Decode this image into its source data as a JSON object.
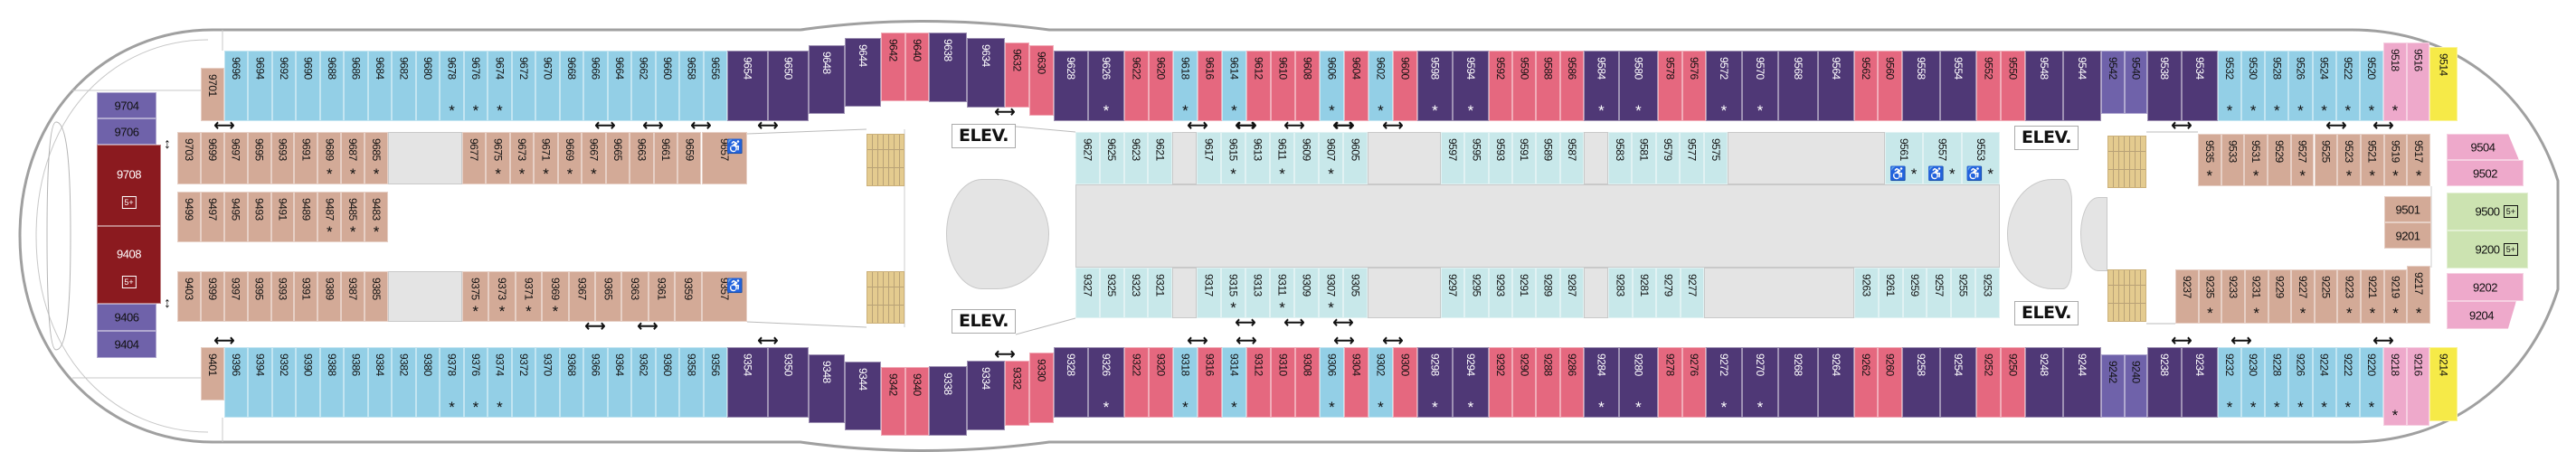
{
  "colors": {
    "b": "#93cfe6",
    "p": "#4f3876",
    "r": "#e5687f",
    "l": "#6f62aa",
    "k": "#eea9cb",
    "y": "#f6ea48",
    "t": "#c8e8ea",
    "n": "#d3aa97",
    "g": "#cce3b1",
    "d": "#8b1a1f",
    "corridor": "#e4e4e4",
    "stair": "#e4cb8f",
    "hull": "#a0a0a0"
  },
  "labels": {
    "elevator": "ELEV.",
    "star": "*",
    "family_badge": "5+",
    "wheelchair": "♿",
    "connect_h": "⟷",
    "connect_v": "↕"
  },
  "top_row": [
    [
      "9696",
      "b",
      0
    ],
    [
      "9694",
      "b",
      0
    ],
    [
      "9692",
      "b",
      0
    ],
    [
      "9690",
      "b",
      0
    ],
    [
      "9688",
      "b",
      0
    ],
    [
      "9686",
      "b",
      0
    ],
    [
      "9684",
      "b",
      0
    ],
    [
      "9682",
      "b",
      0
    ],
    [
      "9680",
      "b",
      0
    ],
    [
      "9678",
      "b",
      1
    ],
    [
      "9676",
      "b",
      1
    ],
    [
      "9674",
      "b",
      1
    ],
    [
      "9672",
      "b",
      0
    ],
    [
      "9670",
      "b",
      0
    ],
    [
      "9668",
      "b",
      0
    ],
    [
      "9666",
      "b",
      0
    ],
    [
      "9664",
      "b",
      0
    ],
    [
      "9662",
      "b",
      0
    ],
    [
      "9660",
      "b",
      0
    ],
    [
      "9658",
      "b",
      0
    ],
    [
      "9656",
      "b",
      0
    ],
    [
      "9654",
      "p",
      0
    ],
    [
      "9650",
      "p",
      0
    ],
    [
      "9648",
      "p",
      0
    ],
    [
      "9644",
      "p",
      0
    ],
    [
      "9642",
      "r",
      0
    ],
    [
      "9640",
      "r",
      0
    ],
    [
      "9638",
      "p",
      0
    ],
    [
      "9634",
      "p",
      0
    ],
    [
      "9632",
      "r",
      0
    ],
    [
      "9630",
      "r",
      0
    ],
    [
      "9628",
      "p",
      0
    ],
    [
      "9626",
      "p",
      1
    ],
    [
      "9622",
      "r",
      0
    ],
    [
      "9620",
      "r",
      0
    ],
    [
      "9618",
      "b",
      1
    ],
    [
      "9616",
      "r",
      0
    ],
    [
      "9614",
      "b",
      1
    ],
    [
      "9612",
      "r",
      0
    ],
    [
      "9610",
      "r",
      0
    ],
    [
      "9608",
      "r",
      0
    ],
    [
      "9606",
      "b",
      1
    ],
    [
      "9604",
      "r",
      0
    ],
    [
      "9602",
      "b",
      1
    ],
    [
      "9600",
      "r",
      0
    ],
    [
      "9598",
      "p",
      1
    ],
    [
      "9594",
      "p",
      1
    ],
    [
      "9592",
      "r",
      0
    ],
    [
      "9590",
      "r",
      0
    ],
    [
      "9588",
      "r",
      0
    ],
    [
      "9586",
      "r",
      0
    ],
    [
      "9584",
      "p",
      1
    ],
    [
      "9580",
      "p",
      1
    ],
    [
      "9578",
      "r",
      0
    ],
    [
      "9576",
      "r",
      0
    ],
    [
      "9572",
      "p",
      1
    ],
    [
      "9570",
      "p",
      1
    ],
    [
      "9568",
      "p",
      0
    ],
    [
      "9564",
      "p",
      0
    ],
    [
      "9562",
      "r",
      0
    ],
    [
      "9560",
      "r",
      0
    ],
    [
      "9558",
      "p",
      0
    ],
    [
      "9554",
      "p",
      0
    ],
    [
      "9552",
      "r",
      0
    ],
    [
      "9550",
      "r",
      0
    ],
    [
      "9548",
      "p",
      0
    ],
    [
      "9544",
      "p",
      0
    ],
    [
      "9542",
      "l",
      0
    ],
    [
      "9540",
      "l",
      0
    ],
    [
      "9538",
      "p",
      0
    ],
    [
      "9534",
      "p",
      0
    ],
    [
      "9532",
      "b",
      1
    ],
    [
      "9530",
      "b",
      1
    ],
    [
      "9528",
      "b",
      1
    ],
    [
      "9526",
      "b",
      1
    ],
    [
      "9524",
      "b",
      1
    ],
    [
      "9522",
      "b",
      1
    ],
    [
      "9520",
      "b",
      1
    ],
    [
      "9518",
      "k",
      1
    ],
    [
      "9516",
      "k",
      0
    ],
    [
      "9514",
      "y",
      0
    ]
  ],
  "bottom_row": [
    [
      "9396",
      "b",
      0
    ],
    [
      "9394",
      "b",
      0
    ],
    [
      "9392",
      "b",
      0
    ],
    [
      "9390",
      "b",
      0
    ],
    [
      "9388",
      "b",
      0
    ],
    [
      "9386",
      "b",
      0
    ],
    [
      "9384",
      "b",
      0
    ],
    [
      "9382",
      "b",
      0
    ],
    [
      "9380",
      "b",
      0
    ],
    [
      "9378",
      "b",
      1
    ],
    [
      "9376",
      "b",
      1
    ],
    [
      "9374",
      "b",
      1
    ],
    [
      "9372",
      "b",
      0
    ],
    [
      "9370",
      "b",
      0
    ],
    [
      "9368",
      "b",
      0
    ],
    [
      "9366",
      "b",
      0
    ],
    [
      "9364",
      "b",
      0
    ],
    [
      "9362",
      "b",
      0
    ],
    [
      "9360",
      "b",
      0
    ],
    [
      "9358",
      "b",
      0
    ],
    [
      "9356",
      "b",
      0
    ],
    [
      "9354",
      "p",
      0
    ],
    [
      "9350",
      "p",
      0
    ],
    [
      "9348",
      "p",
      0
    ],
    [
      "9344",
      "p",
      0
    ],
    [
      "9342",
      "r",
      0
    ],
    [
      "9340",
      "r",
      0
    ],
    [
      "9338",
      "p",
      0
    ],
    [
      "9334",
      "p",
      0
    ],
    [
      "9332",
      "r",
      0
    ],
    [
      "9330",
      "r",
      0
    ],
    [
      "9328",
      "p",
      0
    ],
    [
      "9326",
      "p",
      1
    ],
    [
      "9322",
      "r",
      0
    ],
    [
      "9320",
      "r",
      0
    ],
    [
      "9318",
      "b",
      1
    ],
    [
      "9316",
      "r",
      0
    ],
    [
      "9314",
      "b",
      1
    ],
    [
      "9312",
      "r",
      0
    ],
    [
      "9310",
      "r",
      0
    ],
    [
      "9308",
      "r",
      0
    ],
    [
      "9306",
      "b",
      1
    ],
    [
      "9304",
      "r",
      0
    ],
    [
      "9302",
      "b",
      1
    ],
    [
      "9300",
      "r",
      0
    ],
    [
      "9298",
      "p",
      1
    ],
    [
      "9294",
      "p",
      1
    ],
    [
      "9292",
      "r",
      0
    ],
    [
      "9290",
      "r",
      0
    ],
    [
      "9288",
      "r",
      0
    ],
    [
      "9286",
      "r",
      0
    ],
    [
      "9284",
      "p",
      1
    ],
    [
      "9280",
      "p",
      1
    ],
    [
      "9278",
      "r",
      0
    ],
    [
      "9276",
      "r",
      0
    ],
    [
      "9272",
      "p",
      1
    ],
    [
      "9270",
      "p",
      1
    ],
    [
      "9268",
      "p",
      0
    ],
    [
      "9264",
      "p",
      0
    ],
    [
      "9262",
      "r",
      0
    ],
    [
      "9260",
      "r",
      0
    ],
    [
      "9258",
      "p",
      0
    ],
    [
      "9254",
      "p",
      0
    ],
    [
      "9252",
      "r",
      0
    ],
    [
      "9250",
      "r",
      0
    ],
    [
      "9248",
      "p",
      0
    ],
    [
      "9244",
      "p",
      0
    ],
    [
      "9242",
      "l",
      0
    ],
    [
      "9240",
      "l",
      0
    ],
    [
      "9238",
      "p",
      0
    ],
    [
      "9234",
      "p",
      0
    ],
    [
      "9232",
      "b",
      1
    ],
    [
      "9230",
      "b",
      1
    ],
    [
      "9228",
      "b",
      1
    ],
    [
      "9226",
      "b",
      1
    ],
    [
      "9224",
      "b",
      1
    ],
    [
      "9222",
      "b",
      1
    ],
    [
      "9220",
      "b",
      1
    ],
    [
      "9218",
      "k",
      1
    ],
    [
      "9216",
      "k",
      0
    ],
    [
      "9214",
      "y",
      0
    ]
  ],
  "upper_inner": {
    "left_a": [
      [
        "9703",
        "n",
        0
      ],
      [
        "9699",
        "n",
        0
      ],
      [
        "9697",
        "n",
        0
      ],
      [
        "9695",
        "n",
        0
      ],
      [
        "9693",
        "n",
        0
      ],
      [
        "9691",
        "n",
        0
      ],
      [
        "9689",
        "n",
        1
      ],
      [
        "9687",
        "n",
        1
      ],
      [
        "9685",
        "n",
        1
      ]
    ],
    "left_b": [
      [
        "9677",
        "n",
        0
      ],
      [
        "9675",
        "n",
        1
      ],
      [
        "9673",
        "n",
        1
      ],
      [
        "9671",
        "n",
        1
      ],
      [
        "9669",
        "n",
        1
      ],
      [
        "9667",
        "n",
        1
      ],
      [
        "9665",
        "n",
        0
      ],
      [
        "9663",
        "n",
        0
      ],
      [
        "9661",
        "n",
        0
      ],
      [
        "9659",
        "n",
        0
      ],
      [
        "9657",
        "n",
        0,
        "wheelchair"
      ]
    ],
    "mid_a": [
      [
        "9627",
        "t",
        0
      ],
      [
        "9625",
        "t",
        0
      ],
      [
        "9623",
        "t",
        0
      ],
      [
        "9621",
        "t",
        0
      ]
    ],
    "mid_b": [
      [
        "9617",
        "t",
        0
      ],
      [
        "9615",
        "t",
        1
      ],
      [
        "9613",
        "t",
        0
      ],
      [
        "9611",
        "t",
        1
      ],
      [
        "9609",
        "t",
        0
      ],
      [
        "9607",
        "t",
        1
      ],
      [
        "9605",
        "t",
        0
      ]
    ],
    "mid_c": [
      [
        "9597",
        "t",
        0
      ],
      [
        "9595",
        "t",
        0
      ],
      [
        "9593",
        "t",
        0
      ],
      [
        "9591",
        "t",
        0
      ],
      [
        "9589",
        "t",
        0
      ],
      [
        "9587",
        "t",
        0
      ]
    ],
    "mid_d": [
      [
        "9583",
        "t",
        0
      ],
      [
        "9581",
        "t",
        0
      ],
      [
        "9579",
        "t",
        0
      ],
      [
        "9577",
        "t",
        0
      ],
      [
        "9575",
        "t",
        0
      ]
    ],
    "mid_e": [
      [
        "9561",
        "t",
        1,
        "wheelchair"
      ],
      [
        "9557",
        "t",
        1,
        "wheelchair"
      ],
      [
        "9553",
        "t",
        1,
        "wheelchair"
      ]
    ],
    "right": [
      [
        "9535",
        "n",
        1
      ],
      [
        "9533",
        "n",
        0
      ],
      [
        "9531",
        "n",
        1
      ],
      [
        "9529",
        "n",
        0
      ],
      [
        "9527",
        "n",
        1
      ],
      [
        "9525",
        "n",
        0
      ],
      [
        "9523",
        "n",
        1
      ],
      [
        "9521",
        "n",
        1
      ],
      [
        "9519",
        "n",
        1
      ],
      [
        "9517",
        "n",
        1
      ]
    ]
  },
  "middle_row": [
    [
      "9499",
      "n",
      0
    ],
    [
      "9497",
      "n",
      0
    ],
    [
      "9495",
      "n",
      0
    ],
    [
      "9493",
      "n",
      0
    ],
    [
      "9491",
      "n",
      0
    ],
    [
      "9489",
      "n",
      0
    ],
    [
      "9487",
      "n",
      1
    ],
    [
      "9485",
      "n",
      1
    ],
    [
      "9483",
      "n",
      1
    ]
  ],
  "lower_inner": {
    "left_a": [
      [
        "9403",
        "n",
        0
      ],
      [
        "9399",
        "n",
        0
      ],
      [
        "9397",
        "n",
        0
      ],
      [
        "9395",
        "n",
        0
      ],
      [
        "9393",
        "n",
        0
      ],
      [
        "9391",
        "n",
        0
      ],
      [
        "9389",
        "n",
        0
      ],
      [
        "9387",
        "n",
        0
      ],
      [
        "9385",
        "n",
        0
      ]
    ],
    "left_b": [
      [
        "9375",
        "n",
        1
      ],
      [
        "9373",
        "n",
        1
      ],
      [
        "9371",
        "n",
        1
      ],
      [
        "9369",
        "n",
        1
      ],
      [
        "9367",
        "n",
        0
      ],
      [
        "9365",
        "n",
        0
      ],
      [
        "9363",
        "n",
        0
      ],
      [
        "9361",
        "n",
        0
      ],
      [
        "9359",
        "n",
        0
      ],
      [
        "9357",
        "n",
        0,
        "wheelchair"
      ]
    ],
    "mid_a": [
      [
        "9327",
        "t",
        0
      ],
      [
        "9325",
        "t",
        0
      ],
      [
        "9323",
        "t",
        0
      ],
      [
        "9321",
        "t",
        0
      ]
    ],
    "mid_b": [
      [
        "9317",
        "t",
        0
      ],
      [
        "9315",
        "t",
        1
      ],
      [
        "9313",
        "t",
        0
      ],
      [
        "9311",
        "t",
        1
      ],
      [
        "9309",
        "t",
        0
      ],
      [
        "9307",
        "t",
        1
      ],
      [
        "9305",
        "t",
        0
      ]
    ],
    "mid_c": [
      [
        "9297",
        "t",
        0
      ],
      [
        "9295",
        "t",
        0
      ],
      [
        "9293",
        "t",
        0
      ],
      [
        "9291",
        "t",
        0
      ],
      [
        "9289",
        "t",
        0
      ],
      [
        "9287",
        "t",
        0
      ]
    ],
    "mid_d": [
      [
        "9283",
        "t",
        0
      ],
      [
        "9281",
        "t",
        0
      ],
      [
        "9279",
        "t",
        0
      ],
      [
        "9277",
        "t",
        0
      ]
    ],
    "mid_e": [
      [
        "9263",
        "t",
        0
      ],
      [
        "9261",
        "t",
        0
      ],
      [
        "9259",
        "t",
        0
      ],
      [
        "9257",
        "t",
        0
      ],
      [
        "9255",
        "t",
        0
      ],
      [
        "9253",
        "t",
        0
      ]
    ],
    "right": [
      [
        "9237",
        "n",
        0
      ],
      [
        "9235",
        "n",
        1
      ],
      [
        "9233",
        "n",
        0
      ],
      [
        "9231",
        "n",
        1
      ],
      [
        "9229",
        "n",
        0
      ],
      [
        "9227",
        "n",
        1
      ],
      [
        "9225",
        "n",
        0
      ],
      [
        "9223",
        "n",
        1
      ],
      [
        "9221",
        "n",
        1
      ],
      [
        "9219",
        "n",
        1
      ],
      [
        "9217",
        "n",
        1
      ]
    ]
  },
  "end_cabins": {
    "aft": [
      [
        "9704",
        "l",
        0
      ],
      [
        "9706",
        "l",
        0
      ],
      [
        "9708",
        "d",
        0,
        "",
        "family"
      ],
      [
        "9408",
        "d",
        0,
        "",
        "family"
      ],
      [
        "9406",
        "l",
        0
      ],
      [
        "9404",
        "l",
        0
      ]
    ],
    "aft_corner": [
      [
        "9701",
        "n",
        0
      ],
      [
        "9401",
        "n",
        0
      ]
    ],
    "fwd": [
      [
        "9504",
        "k",
        0
      ],
      [
        "9502",
        "k",
        0
      ],
      [
        "9501",
        "n",
        0
      ],
      [
        "9201",
        "n",
        0
      ],
      [
        "9500",
        "g",
        0,
        "",
        "family"
      ],
      [
        "9200",
        "g",
        0,
        "",
        "family"
      ],
      [
        "9202",
        "k",
        0
      ],
      [
        "9204",
        "k",
        0
      ]
    ]
  },
  "connecting": [
    [
      "9701",
      "9696"
    ],
    [
      "9654",
      "9650"
    ],
    [
      "9634",
      "9632"
    ],
    [
      "9618",
      "9616"
    ],
    [
      "9614",
      "9612"
    ],
    [
      "9606",
      "9604"
    ],
    [
      "9602",
      "9600"
    ],
    [
      "9538",
      "9534"
    ],
    [
      "9524",
      "9522"
    ],
    [
      "9520",
      "9518"
    ],
    [
      "9667",
      "9665"
    ],
    [
      "9663",
      "9661"
    ],
    [
      "9659",
      "9657"
    ],
    [
      "9615",
      "9613"
    ],
    [
      "9611",
      "9609"
    ],
    [
      "9607",
      "9605"
    ],
    [
      "9401",
      "9396"
    ],
    [
      "9354",
      "9350"
    ],
    [
      "9334",
      "9332"
    ],
    [
      "9318",
      "9316"
    ],
    [
      "9314",
      "9312"
    ],
    [
      "9306",
      "9304"
    ],
    [
      "9302",
      "9300"
    ],
    [
      "9238",
      "9234"
    ],
    [
      "9232",
      "9230"
    ],
    [
      "9220",
      "9218"
    ],
    [
      "9367",
      "9365"
    ],
    [
      "9363",
      "9361"
    ],
    [
      "9315",
      "9313"
    ],
    [
      "9311",
      "9309"
    ],
    [
      "9307",
      "9305"
    ],
    [
      "9706",
      "9708"
    ],
    [
      "9406",
      "9408"
    ]
  ]
}
